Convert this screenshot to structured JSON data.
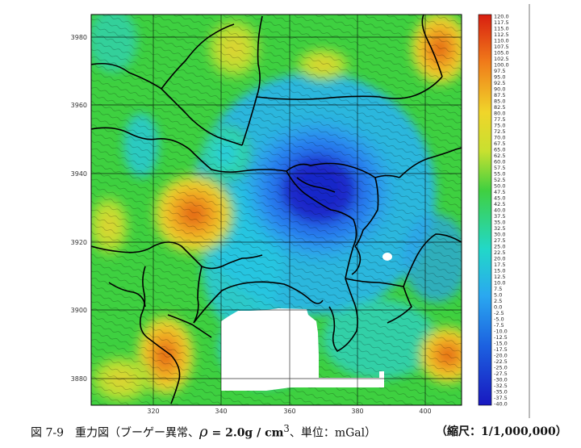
{
  "map": {
    "y_ticks": [
      "3980",
      "3960",
      "3940",
      "3920",
      "3900",
      "3880"
    ],
    "x_ticks": [
      "320",
      "340",
      "360",
      "380",
      "400"
    ]
  },
  "legend": {
    "values": [
      "120.0",
      "117.5",
      "115.0",
      "112.5",
      "110.0",
      "107.5",
      "105.0",
      "102.5",
      "100.0",
      "97.5",
      "95.0",
      "92.5",
      "90.0",
      "87.5",
      "85.0",
      "82.5",
      "80.0",
      "77.5",
      "75.0",
      "72.5",
      "70.0",
      "67.5",
      "65.0",
      "62.5",
      "60.0",
      "57.5",
      "55.0",
      "52.5",
      "50.0",
      "47.5",
      "45.0",
      "42.5",
      "40.0",
      "37.5",
      "35.0",
      "32.5",
      "30.0",
      "27.5",
      "25.0",
      "22.5",
      "20.0",
      "17.5",
      "15.0",
      "12.5",
      "10.0",
      "7.5",
      "5.0",
      "2.5",
      "0.0",
      "-2.5",
      "-5.0",
      "-7.5",
      "-10.0",
      "-12.5",
      "-15.0",
      "-17.5",
      "-20.0",
      "-22.5",
      "-25.0",
      "-27.5",
      "-30.0",
      "-32.5",
      "-35.0",
      "-37.5",
      "-40.0"
    ]
  },
  "caption": {
    "label": "図 7-9　重力図（ブーゲー異常、",
    "rho": "ρ",
    "formula": " = 2.0g / cm",
    "sup": "3",
    "tail": "、単位：mGal）",
    "scale": "（縮尺：1/1,000,000）"
  },
  "colors": {
    "max": "#d81e10",
    "mid": "#2ecf40",
    "min": "#1a22c8",
    "frame": "#000000"
  }
}
